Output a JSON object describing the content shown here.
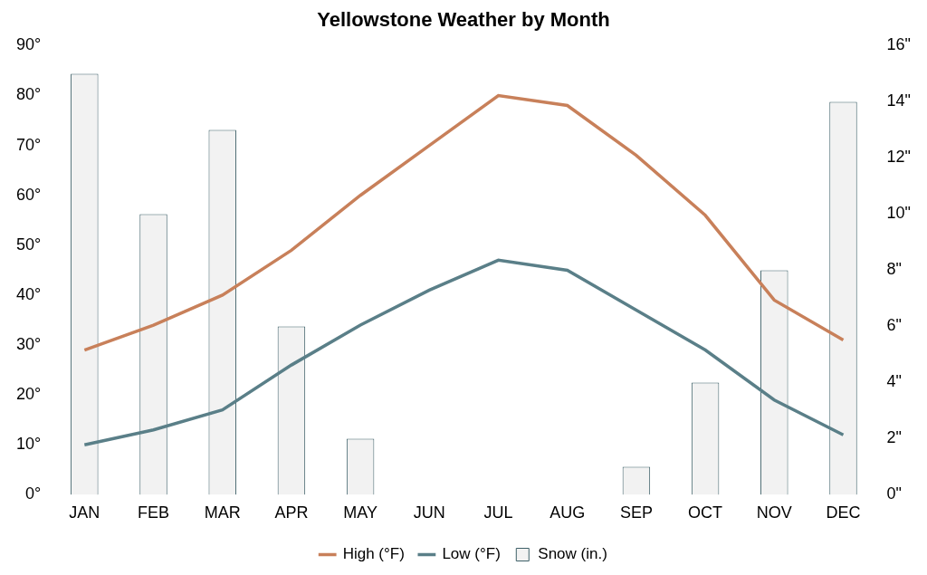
{
  "chart_data": {
    "type": "bar",
    "title": "Yellowstone Weather by Month",
    "categories": [
      "JAN",
      "FEB",
      "MAR",
      "APR",
      "MAY",
      "JUN",
      "JUL",
      "AUG",
      "SEP",
      "OCT",
      "NOV",
      "DEC"
    ],
    "series": [
      {
        "name": "Snow (in.)",
        "type": "bar",
        "axis": "y2",
        "color": "#f2f2f2",
        "values": [
          15,
          10,
          13,
          6,
          2,
          0,
          0,
          0,
          1,
          4,
          8,
          14
        ]
      },
      {
        "name": "High (°F)",
        "type": "line",
        "color": "#c8805a",
        "values": [
          29,
          34,
          40,
          49,
          60,
          70,
          80,
          78,
          68,
          56,
          39,
          31
        ]
      },
      {
        "name": "Low (°F)",
        "type": "line",
        "color": "#5a7f88",
        "values": [
          10,
          13,
          17,
          26,
          34,
          41,
          47,
          45,
          37,
          29,
          19,
          12
        ]
      }
    ],
    "ylim": [
      0,
      90
    ],
    "yticks": [
      {
        "value": 0,
        "label": "0°"
      },
      {
        "value": 10,
        "label": "10°"
      },
      {
        "value": 20,
        "label": "20°"
      },
      {
        "value": 30,
        "label": "30°"
      },
      {
        "value": 40,
        "label": "40°"
      },
      {
        "value": 50,
        "label": "50°"
      },
      {
        "value": 60,
        "label": "60°"
      },
      {
        "value": 70,
        "label": "70°"
      },
      {
        "value": 80,
        "label": "80°"
      },
      {
        "value": 90,
        "label": "90°"
      }
    ],
    "y2lim": [
      0,
      16
    ],
    "y2ticks": [
      {
        "value": 0,
        "label": "0\""
      },
      {
        "value": 2,
        "label": "2\""
      },
      {
        "value": 4,
        "label": "4\""
      },
      {
        "value": 6,
        "label": "6\""
      },
      {
        "value": 8,
        "label": "8\""
      },
      {
        "value": 10,
        "label": "10\""
      },
      {
        "value": 12,
        "label": "12\""
      },
      {
        "value": 14,
        "label": "14\""
      },
      {
        "value": 16,
        "label": "16\""
      }
    ],
    "grid": false,
    "legend": "bottom"
  }
}
